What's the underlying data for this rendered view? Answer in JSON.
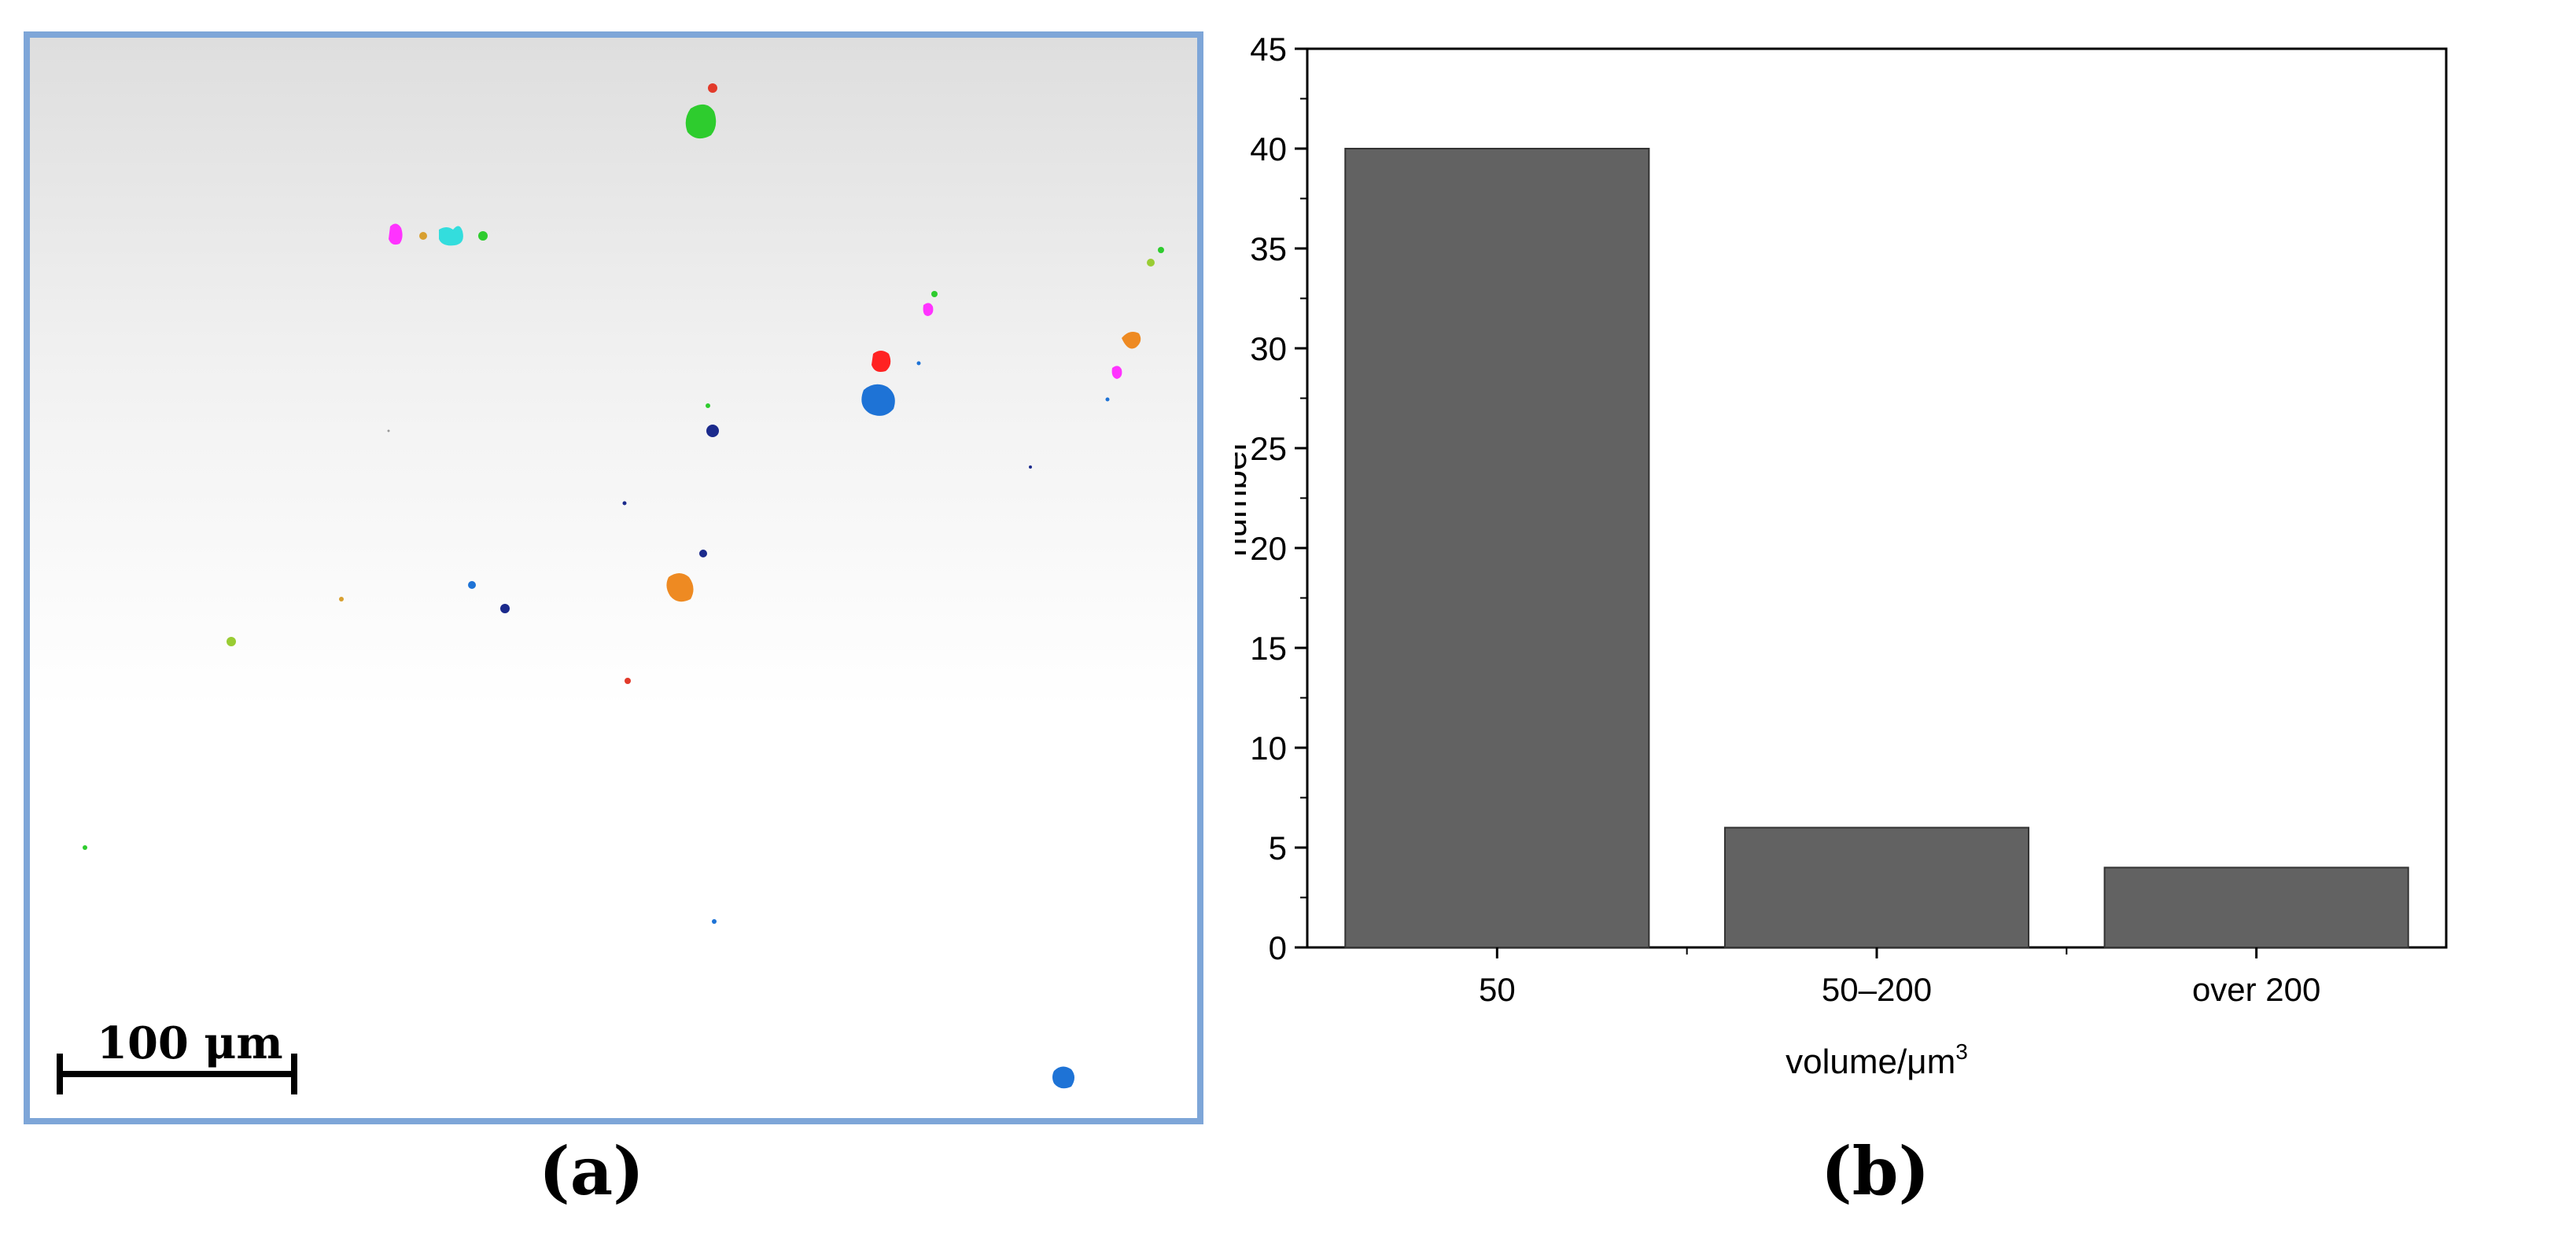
{
  "panel_a": {
    "caption": "(a)",
    "scale_bar": {
      "label": "100 μm",
      "length_um": 100
    }
  },
  "panel_b": {
    "caption": "(b)"
  },
  "colors": {
    "panel_border": "#7ea6d8",
    "bar_fill": "#626262",
    "particles": [
      "#2ecc2e",
      "#ff3333",
      "#ff33ff",
      "#33dddd",
      "#1e73d6",
      "#1b2a8c",
      "#ee8a22",
      "#99cc33"
    ]
  },
  "chart_data": {
    "type": "bar",
    "categories": [
      "50",
      "50–200",
      "over 200"
    ],
    "values": [
      40,
      6,
      4
    ],
    "xlabel": "volume/μm",
    "xlabel_superscript": "3",
    "ylabel": "number",
    "ylim": [
      0,
      45
    ],
    "yticks": [
      0,
      5,
      10,
      15,
      20,
      25,
      30,
      35,
      40,
      45
    ],
    "grid": false,
    "legend": "none"
  }
}
